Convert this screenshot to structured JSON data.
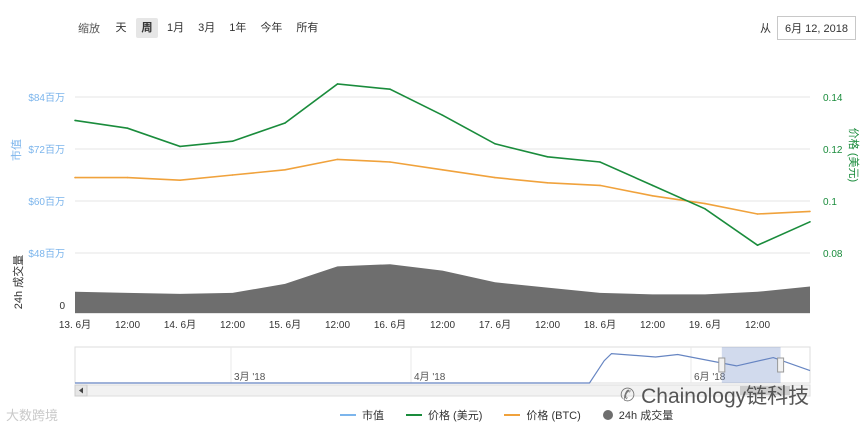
{
  "range_selector": {
    "label": "缩放",
    "buttons": [
      "天",
      "周",
      "1月",
      "3月",
      "1年",
      "今年",
      "所有"
    ],
    "active_index": 1
  },
  "date_picker": {
    "label": "从",
    "value": "6月 12, 2018"
  },
  "colors": {
    "market_cap": "#7cb5ec",
    "price_usd": "#1a8c3c",
    "price_btc": "#f0a23c",
    "volume": "#6e6e6e"
  },
  "chart_data": {
    "type": "line",
    "x_labels": [
      "13. 6月",
      "12:00",
      "14. 6月",
      "12:00",
      "15. 6月",
      "12:00",
      "16. 6月",
      "12:00",
      "17. 6月",
      "12:00",
      "18. 6月",
      "12:00",
      "19. 6月",
      "12:00"
    ],
    "left_axis": {
      "title": "市值",
      "ticks": [
        "$84百万",
        "$72百万",
        "$60百万",
        "$48百万"
      ]
    },
    "right_axis": {
      "title": "价格 (美元)",
      "ticks": [
        "0.14",
        "0.12",
        "0.1",
        "0.08"
      ],
      "ylim": [
        0.08,
        0.14
      ]
    },
    "volume_axis": {
      "title": "24h 成交量",
      "ticks": [
        "0"
      ]
    },
    "series": [
      {
        "name": "价格 (美元)",
        "x": [
          0,
          0.5,
          1,
          1.5,
          2,
          2.5,
          3,
          3.5,
          4,
          4.5,
          5,
          5.5,
          6,
          6.5,
          7
        ],
        "values": [
          0.131,
          0.128,
          0.121,
          0.123,
          0.13,
          0.145,
          0.143,
          0.133,
          0.122,
          0.117,
          0.115,
          0.106,
          0.097,
          0.083,
          0.092
        ]
      },
      {
        "name": "价格 (BTC)",
        "x": [
          0,
          0.5,
          1,
          1.5,
          2,
          2.5,
          3,
          3.5,
          4,
          4.5,
          5,
          5.5,
          6,
          6.5,
          7
        ],
        "values": [
          0.109,
          0.109,
          0.108,
          0.11,
          0.112,
          0.116,
          0.115,
          0.112,
          0.109,
          0.107,
          0.106,
          0.102,
          0.099,
          0.095,
          0.096
        ]
      },
      {
        "name": "24h 成交量",
        "x": [
          0,
          0.5,
          1,
          1.5,
          2,
          2.5,
          3,
          3.5,
          4,
          4.5,
          5,
          5.5,
          6,
          6.5,
          7
        ],
        "values": [
          0.4,
          0.38,
          0.36,
          0.38,
          0.55,
          0.88,
          0.92,
          0.8,
          0.58,
          0.48,
          0.38,
          0.35,
          0.35,
          0.4,
          0.5
        ]
      }
    ]
  },
  "navigator": {
    "labels": [
      "3月 '18",
      "4月 '18",
      "6月 '18"
    ],
    "series": {
      "x": [
        0,
        0.45,
        0.7,
        0.72,
        0.73,
        0.79,
        0.82,
        0.9,
        0.95,
        1.0
      ],
      "values": [
        0.0,
        0.0,
        0.0,
        0.72,
        0.95,
        0.84,
        0.92,
        0.55,
        0.82,
        0.4
      ]
    },
    "selection": [
      0.88,
      0.96
    ]
  },
  "legend": [
    "市值",
    "价格 (美元)",
    "价格 (BTC)",
    "24h 成交量"
  ],
  "watermarks": {
    "left": "大数跨境",
    "right": "Chainology链科技"
  }
}
